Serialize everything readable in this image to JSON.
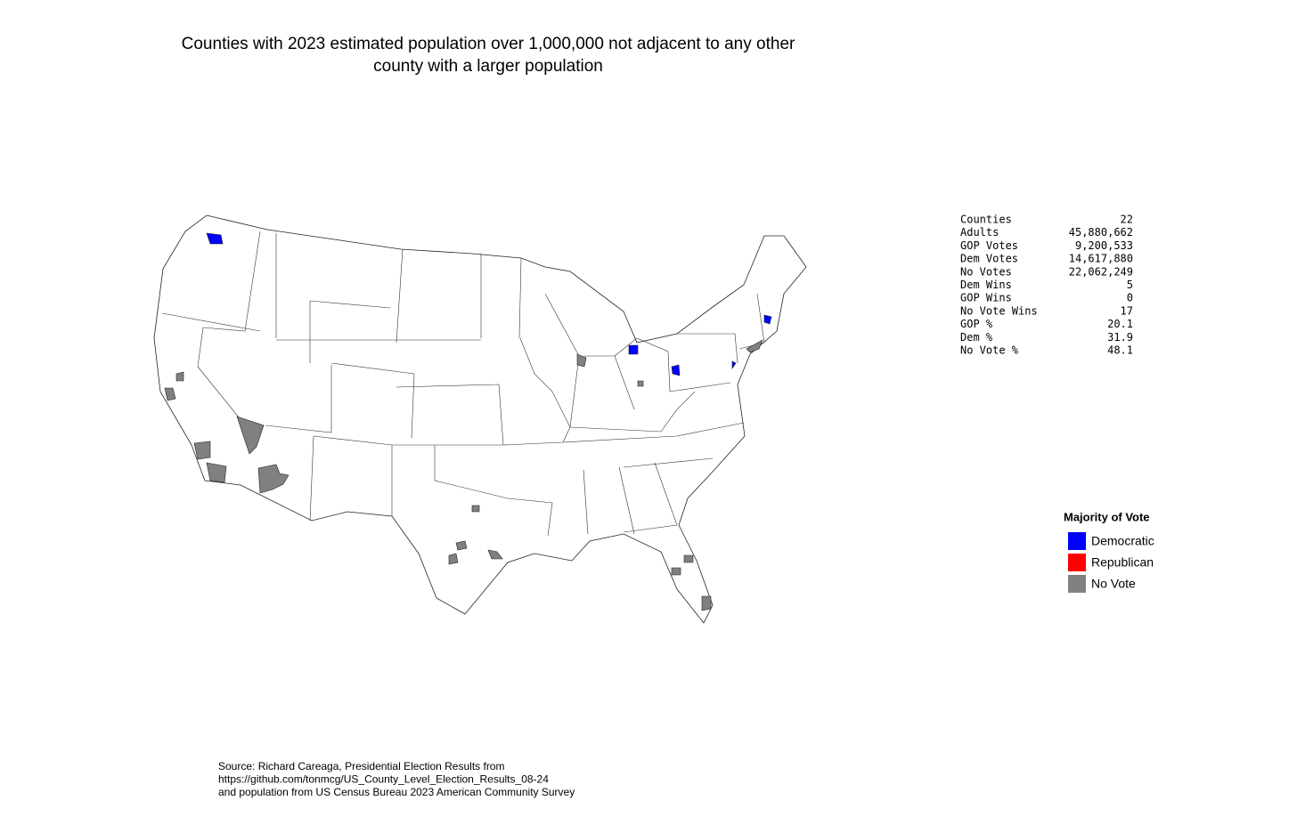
{
  "title": [
    "Counties with 2023 estimated population over 1,000,000 not adjacent to any other",
    "county with a larger population"
  ],
  "stats": {
    "rows": [
      [
        "Counties",
        "22"
      ],
      [
        "Adults",
        "45,880,662"
      ],
      [
        "GOP Votes",
        "9,200,533"
      ],
      [
        "Dem Votes",
        "14,617,880"
      ],
      [
        "No Votes",
        "22,062,249"
      ],
      [
        "Dem Wins",
        "5"
      ],
      [
        "GOP Wins",
        "0"
      ],
      [
        "No Vote Wins",
        "17"
      ],
      [
        "GOP %",
        "20.1"
      ],
      [
        "Dem %",
        "31.9"
      ],
      [
        "No Vote %",
        "48.1"
      ]
    ]
  },
  "legend": {
    "title": "Majority of Vote",
    "items": [
      {
        "label": "Democratic",
        "color": "#0000ff"
      },
      {
        "label": "Republican",
        "color": "#ff0000"
      },
      {
        "label": "No Vote",
        "color": "#808080"
      }
    ]
  },
  "source": [
    "Source: Richard Careaga, Presidential Election Results from",
    "https://github.com/tonmcg/US_County_Level_Election_Results_08-24",
    "and population from US Census Bureau 2023 American Community Survey"
  ]
}
